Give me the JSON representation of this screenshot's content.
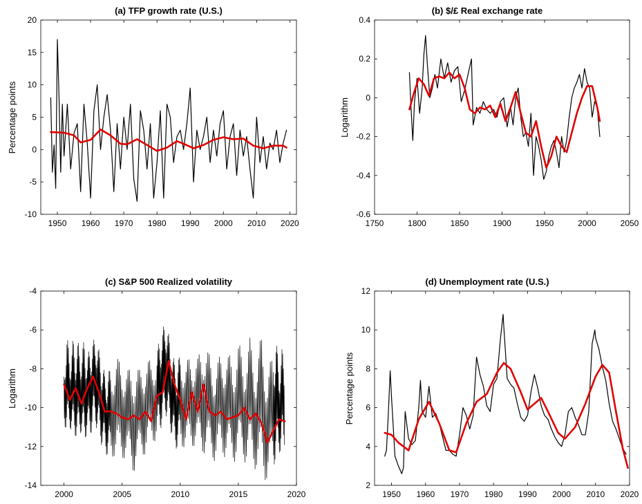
{
  "chart_data": [
    {
      "type": "line",
      "title": "(a) TFP growth rate (U.S.)",
      "xlabel": "",
      "ylabel": "Percentage points",
      "xlim": [
        1945,
        2022
      ],
      "ylim": [
        -10,
        20
      ],
      "xticks": [
        1950,
        1960,
        1970,
        1980,
        1990,
        2000,
        2010,
        2020
      ],
      "yticks": [
        -10,
        -5,
        0,
        5,
        10,
        15,
        20
      ],
      "grid": false,
      "series": [
        {
          "color": "#000000",
          "x": [
            1948,
            1948.5,
            1949,
            1949.5,
            1950,
            1950.5,
            1951,
            1951.5,
            1952,
            1953,
            1954,
            1955,
            1956,
            1957,
            1958,
            1959,
            1960,
            1961,
            1962,
            1963,
            1964,
            1965,
            1966,
            1967,
            1968,
            1969,
            1970,
            1971,
            1972,
            1973,
            1974,
            1975,
            1976,
            1977,
            1978,
            1979,
            1980,
            1981,
            1982,
            1983,
            1984,
            1985,
            1986,
            1987,
            1988,
            1989,
            1990,
            1991,
            1992,
            1993,
            1994,
            1995,
            1996,
            1997,
            1998,
            1999,
            2000,
            2001,
            2002,
            2003,
            2004,
            2005,
            2006,
            2007,
            2008,
            2009,
            2010,
            2011,
            2012,
            2013,
            2014,
            2015,
            2016,
            2017,
            2018,
            2019
          ],
          "values": [
            8,
            -3.5,
            0.7,
            -6,
            17,
            8,
            -3.5,
            7,
            -1,
            7,
            -3,
            2.5,
            4,
            -6.5,
            7,
            1,
            -7.5,
            6,
            10,
            0,
            5,
            8.5,
            3,
            -6.5,
            4,
            -3,
            5,
            0,
            7,
            -4.5,
            -8,
            6,
            3,
            -3,
            4,
            -7.5,
            -2,
            6,
            -7.5,
            7,
            5,
            -2,
            2,
            3,
            0,
            4,
            9.5,
            -5,
            3,
            0,
            2,
            5,
            -2,
            3,
            -1,
            4,
            6,
            -3,
            2,
            4,
            -4,
            3,
            -1,
            2,
            -3,
            -7.5,
            5,
            -2,
            2,
            -3,
            1,
            0,
            3,
            -2,
            1,
            3
          ]
        },
        {
          "color": "#e00000",
          "x": [
            1948,
            1952,
            1955,
            1957,
            1960,
            1963,
            1966,
            1969,
            1971,
            1974,
            1977,
            1980,
            1983,
            1986,
            1988,
            1991,
            1994,
            1997,
            2000,
            2003,
            2006,
            2009,
            2012,
            2015,
            2018,
            2019
          ],
          "values": [
            2.7,
            2.6,
            2.2,
            1.1,
            1.5,
            3.1,
            2.2,
            0.9,
            0.8,
            1.6,
            0.7,
            -0.2,
            0.3,
            1.3,
            0.9,
            0.2,
            0.7,
            1.5,
            1.9,
            1.6,
            1.7,
            0.6,
            0.2,
            0.6,
            0.6,
            0.3
          ]
        }
      ]
    },
    {
      "type": "line",
      "title": "$/£ Real exchange rate",
      "title_prefix": "(b)",
      "xlabel": "",
      "ylabel": "Logarithm",
      "xlim": [
        1750,
        2050
      ],
      "ylim": [
        -0.6,
        0.4
      ],
      "xticks": [
        1750,
        1800,
        1850,
        1900,
        1950,
        2000,
        2050
      ],
      "yticks": [
        -0.6,
        -0.4,
        -0.2,
        0,
        0.2,
        0.4
      ],
      "grid": false,
      "series": [
        {
          "color": "#000000",
          "x": [
            1791,
            1793,
            1795,
            1797,
            1800,
            1803,
            1806,
            1808,
            1810,
            1812,
            1815,
            1818,
            1821,
            1824,
            1828,
            1832,
            1836,
            1840,
            1844,
            1848,
            1852,
            1856,
            1860,
            1864,
            1866,
            1870,
            1874,
            1878,
            1882,
            1886,
            1890,
            1894,
            1898,
            1902,
            1906,
            1910,
            1913,
            1916,
            1919,
            1922,
            1925,
            1928,
            1931,
            1934,
            1937,
            1940,
            1943,
            1946,
            1949,
            1952,
            1955,
            1958,
            1961,
            1964,
            1967,
            1970,
            1973,
            1976,
            1979,
            1982,
            1985,
            1988,
            1991,
            1994,
            1997,
            2000,
            2003,
            2006,
            2009,
            2012,
            2015
          ],
          "values": [
            0.13,
            -0.06,
            -0.22,
            -0.02,
            0.1,
            -0.08,
            0.05,
            0.22,
            0.32,
            0.18,
            0.0,
            0.05,
            0.12,
            0.05,
            0.2,
            0.1,
            0.18,
            0.08,
            0.14,
            0.16,
            -0.02,
            0.04,
            0.12,
            0.2,
            -0.14,
            -0.05,
            -0.08,
            -0.02,
            -0.06,
            -0.08,
            -0.06,
            -0.1,
            -0.02,
            0.0,
            -0.15,
            -0.05,
            -0.14,
            0.0,
            0.05,
            -0.1,
            -0.2,
            -0.18,
            -0.25,
            -0.08,
            -0.4,
            -0.2,
            -0.25,
            -0.32,
            -0.42,
            -0.38,
            -0.3,
            -0.25,
            -0.22,
            -0.28,
            -0.36,
            -0.2,
            -0.28,
            -0.22,
            -0.1,
            0.0,
            0.05,
            0.08,
            0.12,
            0.05,
            0.15,
            0.08,
            0.05,
            -0.1,
            -0.02,
            -0.05,
            -0.2
          ]
        },
        {
          "color": "#e00000",
          "x": [
            1791,
            1796,
            1802,
            1808,
            1814,
            1820,
            1826,
            1832,
            1838,
            1844,
            1850,
            1856,
            1862,
            1868,
            1874,
            1880,
            1886,
            1892,
            1898,
            1904,
            1910,
            1916,
            1922,
            1928,
            1934,
            1940,
            1946,
            1952,
            1958,
            1964,
            1970,
            1976,
            1982,
            1988,
            1994,
            2000,
            2006,
            2012,
            2015
          ],
          "values": [
            -0.06,
            0.02,
            0.1,
            0.07,
            0.01,
            0.1,
            0.11,
            0.1,
            0.13,
            0.1,
            0.12,
            0.05,
            -0.06,
            -0.08,
            -0.05,
            -0.06,
            -0.04,
            -0.1,
            -0.03,
            -0.12,
            -0.05,
            0.03,
            -0.08,
            -0.18,
            -0.2,
            -0.12,
            -0.25,
            -0.36,
            -0.3,
            -0.2,
            -0.25,
            -0.28,
            -0.18,
            -0.08,
            0.0,
            0.06,
            0.06,
            -0.05,
            -0.12
          ]
        }
      ]
    },
    {
      "type": "line",
      "title": "(c) S&P 500 Realized volatility",
      "xlabel": "",
      "ylabel": "Logarithm",
      "xlim": [
        1998,
        2020
      ],
      "ylim": [
        -14,
        -4
      ],
      "xticks": [
        2000,
        2005,
        2010,
        2015,
        2020
      ],
      "yticks": [
        -14,
        -12,
        -10,
        -8,
        -6,
        -4
      ],
      "grid": false,
      "series": [
        {
          "color": "#000000",
          "x": [
            2000,
            2000.25,
            2000.5,
            2000.75,
            2001,
            2001.25,
            2001.5,
            2001.75,
            2002,
            2002.25,
            2002.5,
            2002.75,
            2003,
            2003.25,
            2003.5,
            2003.75,
            2004,
            2004.5,
            2005,
            2005.5,
            2006,
            2006.5,
            2007,
            2007.5,
            2008,
            2008.25,
            2008.5,
            2008.75,
            2009,
            2009.25,
            2009.5,
            2009.75,
            2010,
            2010.5,
            2011,
            2011.5,
            2012,
            2012.5,
            2013,
            2013.5,
            2014,
            2014.5,
            2015,
            2015.5,
            2016,
            2016.5,
            2017,
            2017.5,
            2018,
            2018.25,
            2018.5,
            2018.75,
            2019
          ],
          "upper": [
            -7.9,
            -6.2,
            -7.4,
            -6.5,
            -7.0,
            -6.6,
            -7.2,
            -6.4,
            -7.4,
            -6.8,
            -6.6,
            -6.2,
            -7.0,
            -7.6,
            -8.2,
            -8.4,
            -7.8,
            -7.4,
            -7.6,
            -8.0,
            -7.8,
            -8.0,
            -7.4,
            -7.6,
            -7.0,
            -6.4,
            -6.0,
            -5.3,
            -6.2,
            -7.0,
            -7.6,
            -8.0,
            -7.0,
            -7.6,
            -7.2,
            -7.4,
            -6.5,
            -7.2,
            -7.8,
            -7.2,
            -7.0,
            -7.6,
            -6.6,
            -7.4,
            -6.4,
            -7.6,
            -6.2,
            -8.0,
            -7.2,
            -6.4,
            -7.8,
            -6.9,
            -7.9
          ],
          "lower": [
            -10.8,
            -11.4,
            -11.0,
            -11.6,
            -11.5,
            -11.8,
            -11.2,
            -12.0,
            -11.2,
            -11.6,
            -10.8,
            -11.0,
            -11.4,
            -12.0,
            -12.2,
            -12.6,
            -12.4,
            -12.8,
            -12.6,
            -12.9,
            -13.4,
            -12.8,
            -12.4,
            -12.0,
            -11.6,
            -11.2,
            -10.8,
            -10.4,
            -10.8,
            -11.4,
            -12.0,
            -12.2,
            -11.8,
            -12.4,
            -12.0,
            -12.2,
            -12.4,
            -12.6,
            -12.8,
            -12.5,
            -12.6,
            -12.9,
            -12.6,
            -12.8,
            -13.0,
            -13.2,
            -13.5,
            -13.9,
            -13.2,
            -12.6,
            -12.4,
            -12.2,
            -12.0
          ]
        },
        {
          "color": "#e00000",
          "x": [
            2000,
            2000.5,
            2001,
            2001.5,
            2002,
            2002.5,
            2003,
            2003.5,
            2004,
            2004.5,
            2005,
            2005.5,
            2006,
            2006.5,
            2007,
            2007.5,
            2008,
            2008.5,
            2009,
            2009.5,
            2010,
            2010.5,
            2011,
            2011.5,
            2012,
            2012.5,
            2013,
            2013.5,
            2014,
            2014.5,
            2015,
            2015.5,
            2016,
            2016.5,
            2017,
            2017.5,
            2018,
            2018.5,
            2019
          ],
          "values": [
            -8.8,
            -9.6,
            -9.0,
            -9.8,
            -9.0,
            -8.4,
            -9.2,
            -10.2,
            -10.2,
            -10.3,
            -10.5,
            -10.6,
            -10.4,
            -10.6,
            -10.2,
            -10.7,
            -9.4,
            -9.2,
            -7.6,
            -8.8,
            -9.6,
            -10.6,
            -9.2,
            -10.2,
            -8.8,
            -10.2,
            -10.4,
            -10.2,
            -10.6,
            -10.5,
            -10.4,
            -10.0,
            -10.6,
            -10.3,
            -10.8,
            -11.8,
            -11.2,
            -10.6,
            -10.7
          ]
        }
      ]
    },
    {
      "type": "line",
      "title": "(d) Unemployment rate (U.S.)",
      "xlabel": "",
      "ylabel": "Percentage points",
      "xlim": [
        1945,
        2020
      ],
      "ylim": [
        2,
        12
      ],
      "xticks": [
        1950,
        1960,
        1970,
        1980,
        1990,
        2000,
        2010,
        2020
      ],
      "yticks": [
        2,
        4,
        6,
        8,
        10,
        12
      ],
      "grid": false,
      "series": [
        {
          "color": "#000000",
          "x": [
            1948,
            1948.5,
            1949,
            1949.6,
            1950,
            1950.5,
            1951,
            1952,
            1953,
            1953.5,
            1954,
            1955,
            1956,
            1957,
            1958,
            1958.5,
            1959,
            1960,
            1961,
            1962,
            1963,
            1964,
            1965,
            1966,
            1967,
            1968,
            1969,
            1970,
            1971,
            1972,
            1973,
            1974,
            1975,
            1976,
            1977,
            1978,
            1979,
            1980,
            1981,
            1982,
            1982.8,
            1983,
            1984,
            1985,
            1986,
            1987,
            1988,
            1989,
            1990,
            1991,
            1992,
            1993,
            1994,
            1995,
            1996,
            1997,
            1998,
            1999,
            2000,
            2001,
            2002,
            2003,
            2004,
            2005,
            2006,
            2007,
            2008,
            2009,
            2009.8,
            2010,
            2011,
            2012,
            2013,
            2014,
            2015,
            2016,
            2017,
            2018,
            2019
          ],
          "values": [
            3.5,
            3.8,
            5.5,
            7.9,
            6.5,
            5.0,
            3.5,
            3.0,
            2.6,
            2.9,
            5.8,
            4.4,
            4.1,
            4.3,
            6.0,
            7.4,
            5.8,
            5.5,
            7.1,
            5.5,
            5.7,
            5.2,
            4.5,
            3.8,
            3.8,
            3.6,
            3.5,
            4.6,
            6.0,
            5.6,
            4.9,
            5.6,
            8.6,
            7.7,
            7.1,
            6.1,
            5.8,
            7.2,
            7.5,
            9.5,
            10.8,
            10.2,
            7.5,
            7.2,
            7.0,
            6.2,
            5.5,
            5.3,
            5.6,
            6.8,
            7.7,
            7.0,
            6.1,
            5.6,
            5.4,
            4.9,
            4.5,
            4.2,
            4.0,
            4.6,
            5.8,
            6.0,
            5.5,
            5.1,
            4.6,
            4.6,
            5.8,
            9.3,
            10.0,
            9.6,
            9.0,
            8.1,
            7.4,
            6.2,
            5.3,
            4.9,
            4.4,
            3.9,
            3.6
          ]
        },
        {
          "color": "#e00000",
          "x": [
            1948,
            1950,
            1952,
            1955,
            1958,
            1961,
            1964,
            1967,
            1969,
            1972,
            1975,
            1978,
            1981,
            1983,
            1985,
            1988,
            1990,
            1992,
            1994,
            1996,
            1999,
            2001,
            2004,
            2007,
            2010,
            2012,
            2014,
            2016,
            2018,
            2019.5
          ],
          "values": [
            4.7,
            4.6,
            4.2,
            3.8,
            5.4,
            6.3,
            5.2,
            3.8,
            3.7,
            5.2,
            6.3,
            6.7,
            7.8,
            8.3,
            8.0,
            6.8,
            5.9,
            6.2,
            6.5,
            5.8,
            4.7,
            4.4,
            5.0,
            6.2,
            7.6,
            8.2,
            7.8,
            5.8,
            3.9,
            2.9
          ]
        }
      ]
    }
  ]
}
